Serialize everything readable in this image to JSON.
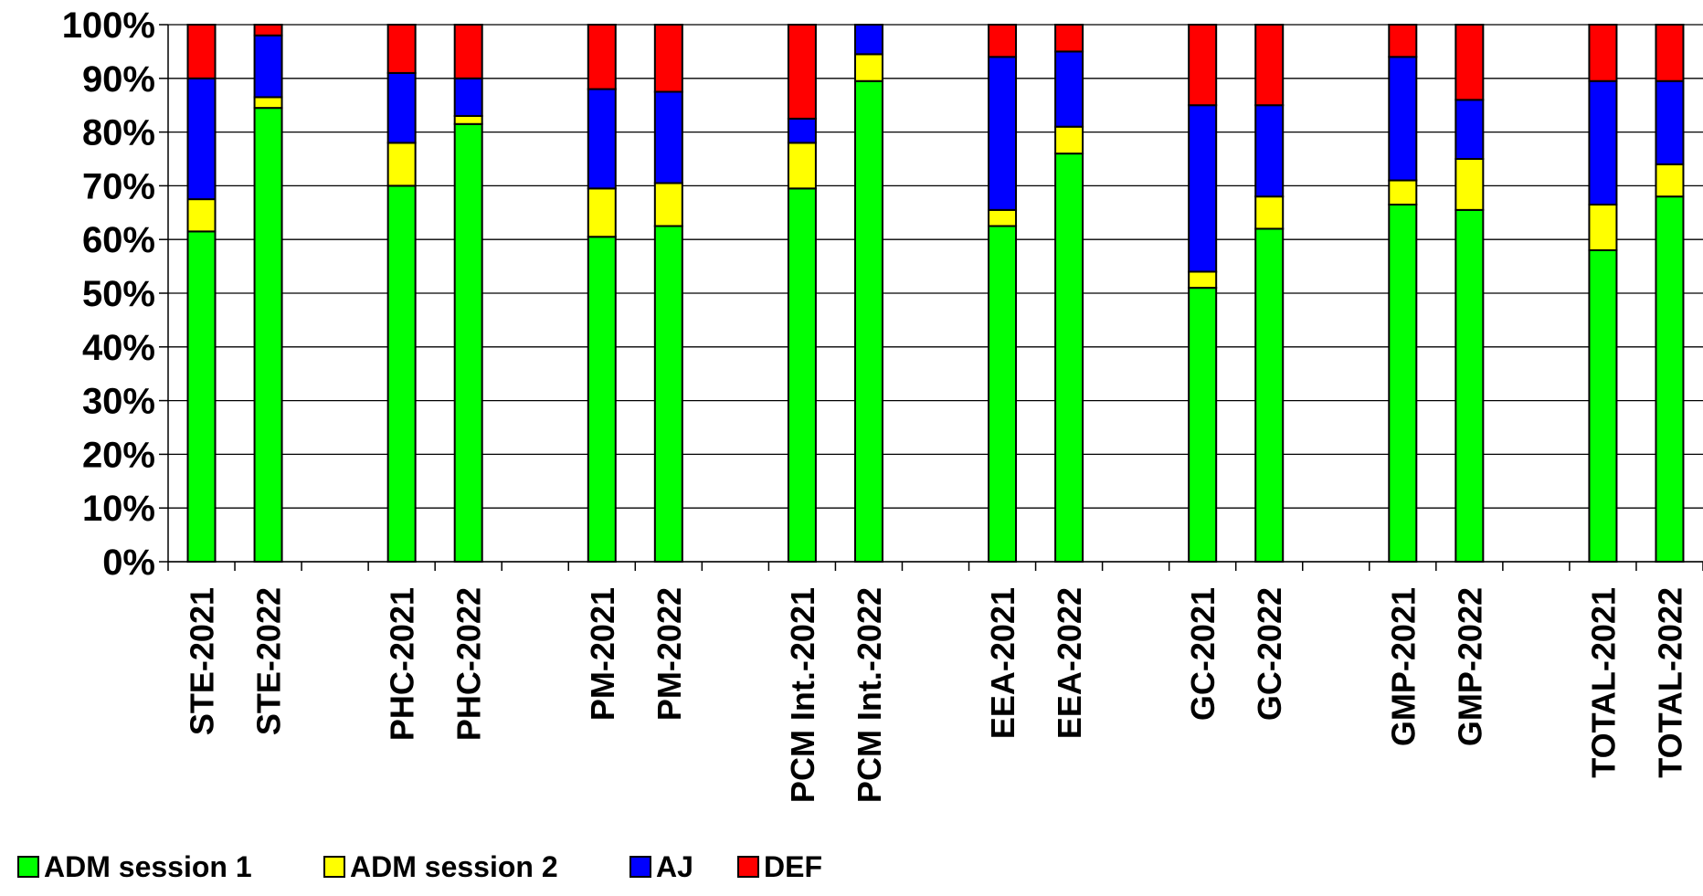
{
  "chart_data": {
    "type": "bar",
    "stacked": true,
    "title": "",
    "xlabel": "",
    "ylabel": "",
    "ylim": [
      0,
      100
    ],
    "y_ticks": [
      "0%",
      "10%",
      "20%",
      "30%",
      "40%",
      "50%",
      "60%",
      "70%",
      "80%",
      "90%",
      "100%"
    ],
    "grid": true,
    "legend_position": "bottom-left",
    "categories": [
      "STE-2021",
      "STE-2022",
      "",
      "PHC-2021",
      "PHC-2022",
      "",
      "PM-2021",
      "PM-2022",
      "",
      "PCM Int.-2021",
      "PCM Int.-2022",
      "",
      "EEA-2021",
      "EEA-2022",
      "",
      "GC-2021",
      "GC-2022",
      "",
      "GMP-2021",
      "GMP-2022",
      "",
      "TOTAL-2021",
      "TOTAL-2022"
    ],
    "series": [
      {
        "name": "ADM session 1",
        "color": "#00ff00",
        "values": [
          61.5,
          84.5,
          0,
          70,
          81.5,
          0,
          60.5,
          62.5,
          0,
          69.5,
          89.5,
          0,
          62.5,
          76,
          0,
          51,
          62,
          0,
          66.5,
          65.5,
          0,
          58,
          68
        ]
      },
      {
        "name": "ADM session 2",
        "color": "#ffff00",
        "values": [
          6,
          2,
          0,
          8,
          1.5,
          0,
          9,
          8,
          0,
          8.5,
          5,
          0,
          3,
          5,
          0,
          3,
          6,
          0,
          4.5,
          9.5,
          0,
          8.5,
          6
        ]
      },
      {
        "name": "AJ",
        "color": "#0000ff",
        "values": [
          22.5,
          11.5,
          0,
          13,
          7,
          0,
          18.5,
          17,
          0,
          4.5,
          5.5,
          0,
          28.5,
          14,
          0,
          31,
          17,
          0,
          23,
          11,
          0,
          23,
          15.5
        ]
      },
      {
        "name": "DEF",
        "color": "#ff0000",
        "values": [
          10,
          2,
          0,
          9,
          10,
          0,
          12,
          12.5,
          0,
          17.5,
          0,
          0,
          6,
          5,
          0,
          15,
          15,
          0,
          6,
          14,
          0,
          10.5,
          10.5
        ]
      }
    ]
  }
}
